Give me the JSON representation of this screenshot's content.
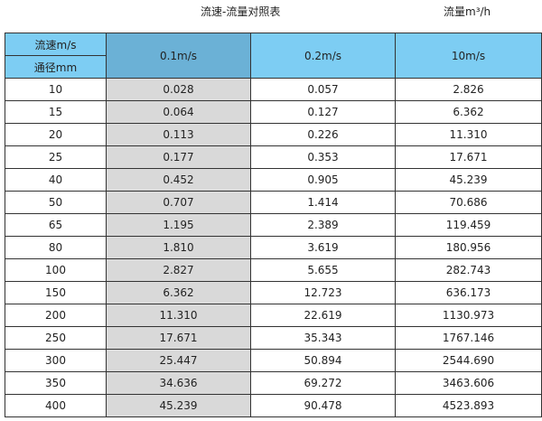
{
  "title": "流速-流量对照表",
  "unit_label": "流量m³/h",
  "colors": {
    "header": "#7dcdf3",
    "header_selected": "#6bb1d6",
    "highlight_column": "#d9d9d9"
  },
  "table": {
    "corner_top": "流速m/s",
    "corner_bottom": "通径mm",
    "columns": [
      "0.1m/s",
      "0.2m/s",
      "10m/s"
    ],
    "rows": [
      [
        "10",
        "0.028",
        "0.057",
        "2.826"
      ],
      [
        "15",
        "0.064",
        "0.127",
        "6.362"
      ],
      [
        "20",
        "0.113",
        "0.226",
        "11.310"
      ],
      [
        "25",
        "0.177",
        "0.353",
        "17.671"
      ],
      [
        "40",
        "0.452",
        "0.905",
        "45.239"
      ],
      [
        "50",
        "0.707",
        "1.414",
        "70.686"
      ],
      [
        "65",
        "1.195",
        "2.389",
        "119.459"
      ],
      [
        "80",
        "1.810",
        "3.619",
        "180.956"
      ],
      [
        "100",
        "2.827",
        "5.655",
        "282.743"
      ],
      [
        "150",
        "6.362",
        "12.723",
        "636.173"
      ],
      [
        "200",
        "11.310",
        "22.619",
        "1130.973"
      ],
      [
        "250",
        "17.671",
        "35.343",
        "1767.146"
      ],
      [
        "300",
        "25.447",
        "50.894",
        "2544.690"
      ],
      [
        "350",
        "34.636",
        "69.272",
        "3463.606"
      ],
      [
        "400",
        "45.239",
        "90.478",
        "4523.893"
      ]
    ]
  }
}
